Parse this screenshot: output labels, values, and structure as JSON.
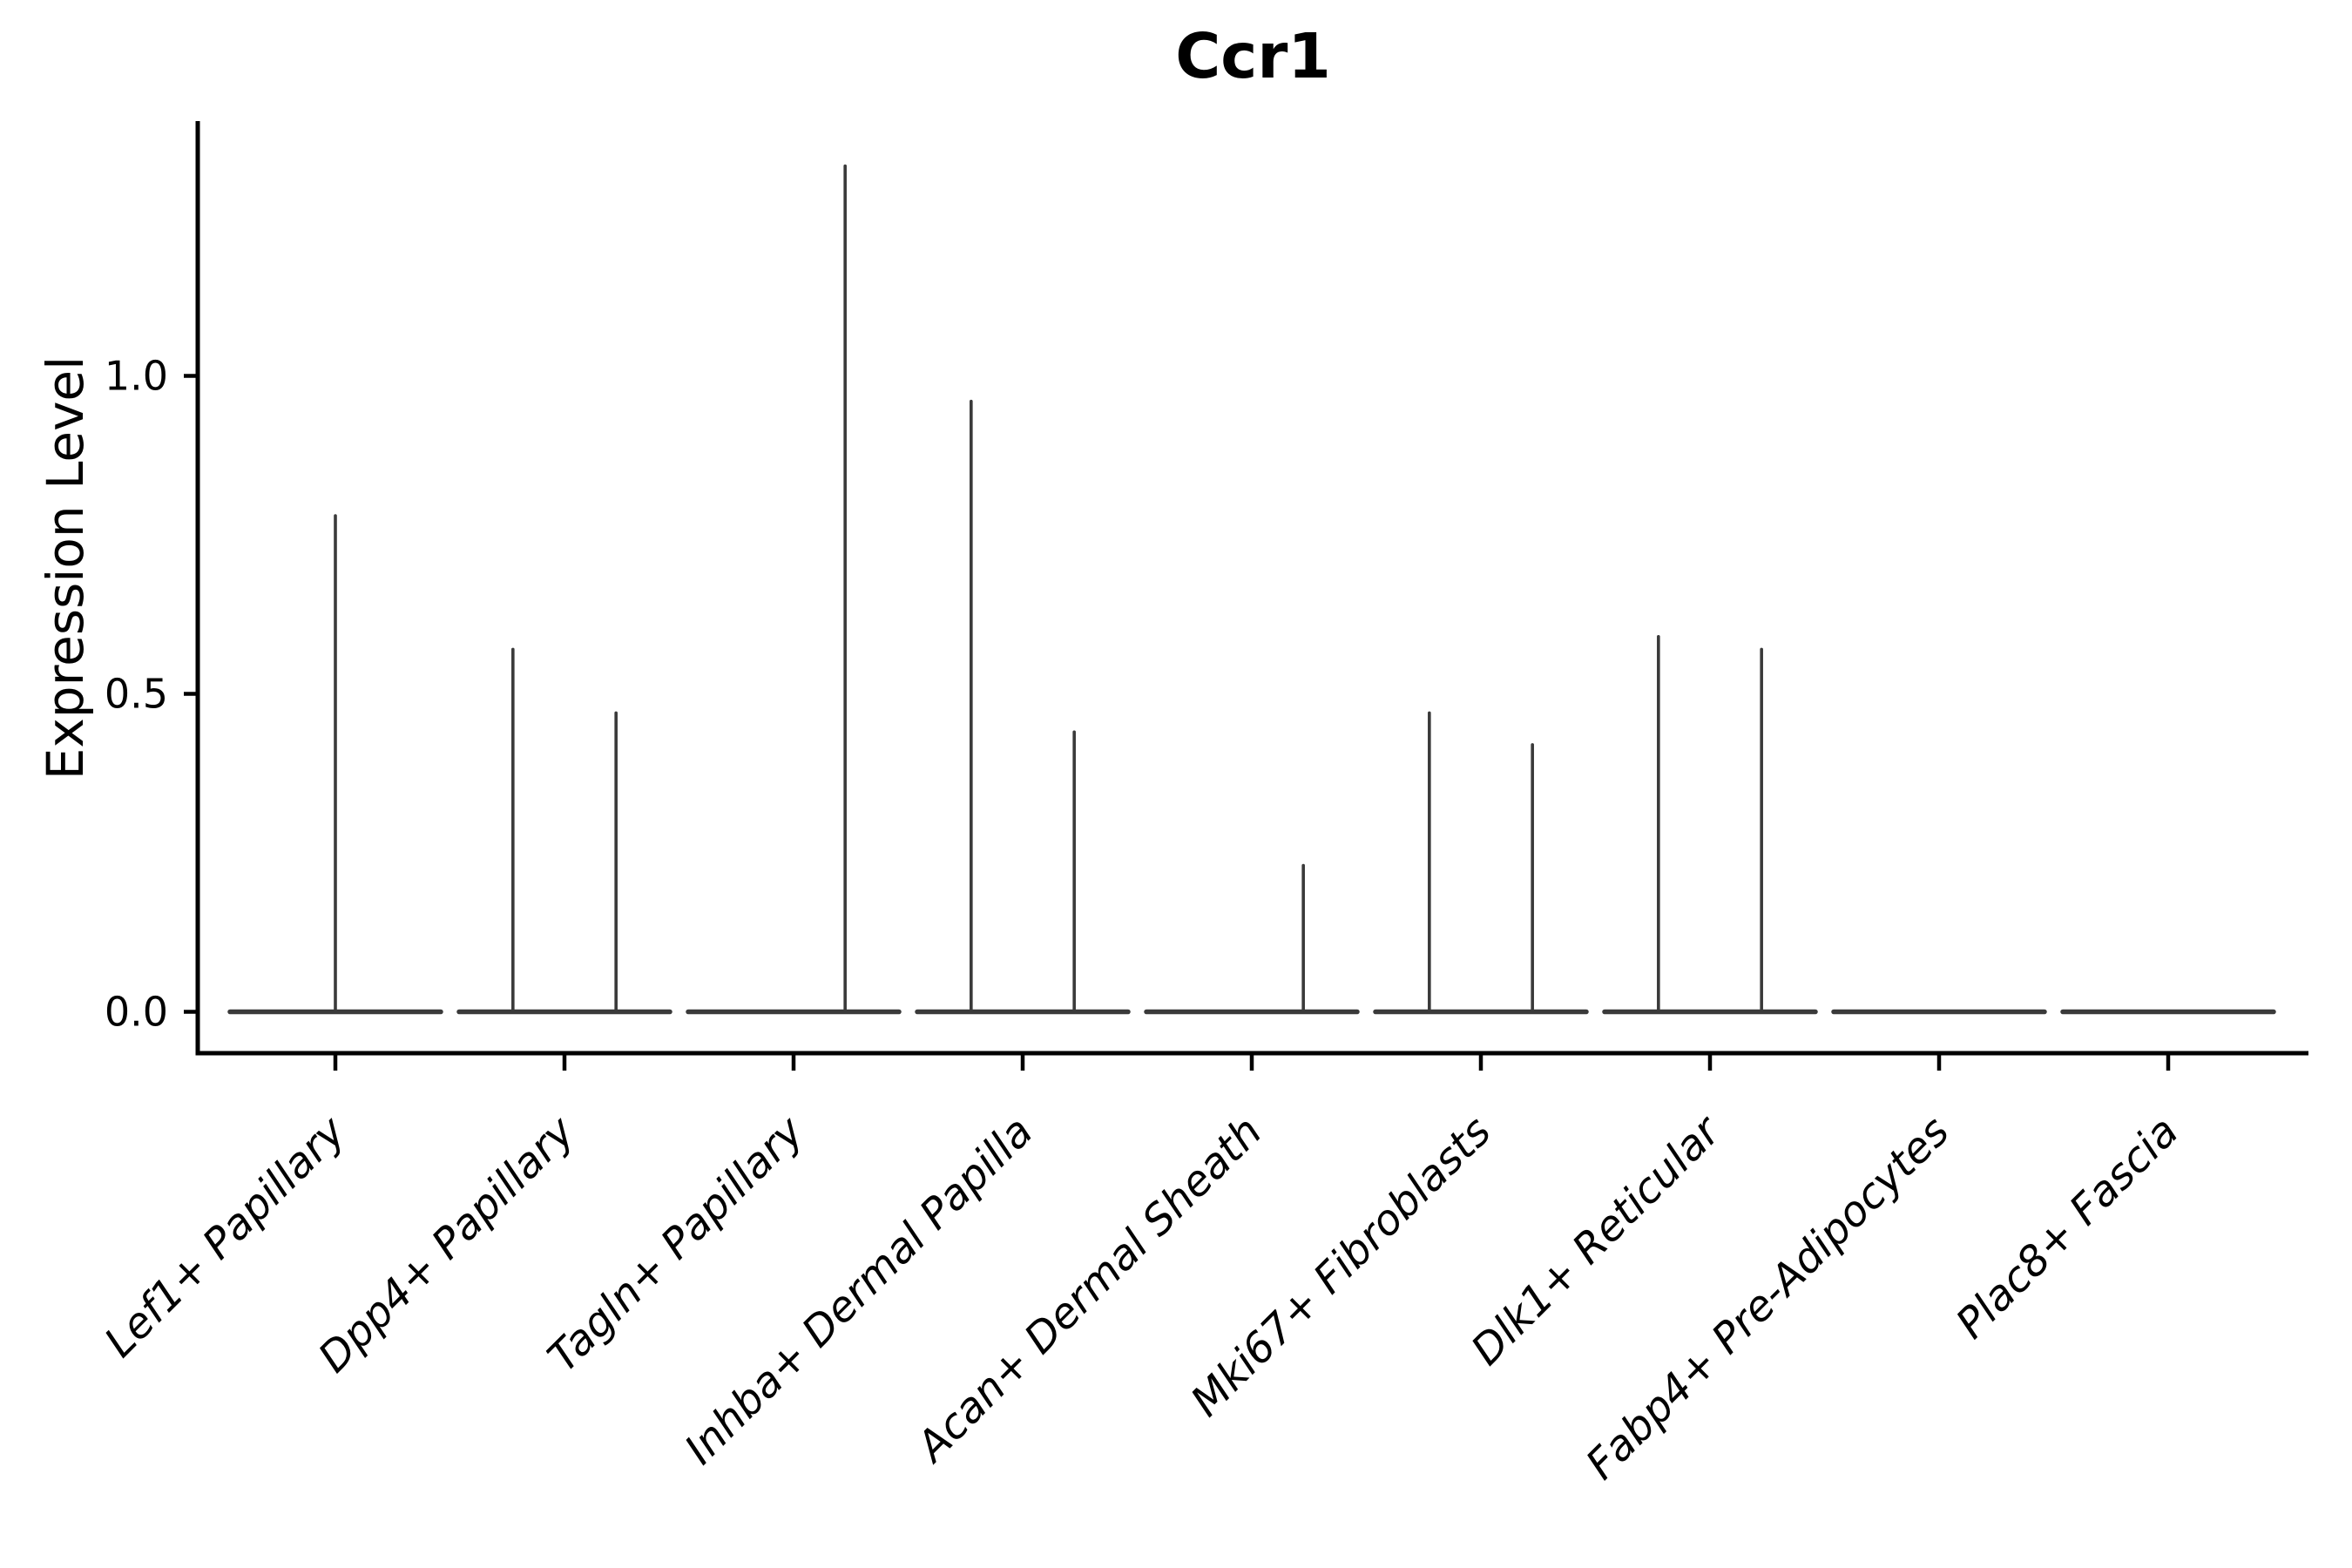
{
  "title": "Ccr1",
  "colors": {
    "background": "#ffffff",
    "axis": "#000000",
    "text": "#000000",
    "violin_stroke": "#3a3a3a"
  },
  "chart_data": {
    "type": "violin",
    "title": "Ccr1",
    "xlabel": "",
    "ylabel": "Expression Level",
    "ytick_labels": [
      "0.0",
      "0.5",
      "1.0"
    ],
    "ytick_values": [
      0.0,
      0.5,
      1.0
    ],
    "ylim": [
      -0.065,
      1.4
    ],
    "grid": false,
    "legend": "none",
    "x_label_rotation_deg": 45,
    "categories": [
      "Lef1+ Papillary",
      "Dpp4+ Papillary",
      "Tagln+ Papillary",
      "Inhba+ Dermal Papilla",
      "Acan+ Dermal Sheath",
      "Mki67+ Fibroblasts",
      "Dlk1+ Reticular",
      "Fabp4+ Pre-Adipocytes",
      "Plac8+ Fascia"
    ],
    "violins": [
      {
        "category": "Lef1+ Papillary",
        "baseline": 0.0,
        "spikes": [
          {
            "offset_frac": 0.0,
            "max": 0.78
          }
        ]
      },
      {
        "category": "Dpp4+ Papillary",
        "baseline": 0.0,
        "spikes": [
          {
            "offset_frac": -0.225,
            "max": 0.57
          },
          {
            "offset_frac": 0.225,
            "max": 0.47
          }
        ]
      },
      {
        "category": "Tagln+ Papillary",
        "baseline": 0.0,
        "spikes": [
          {
            "offset_frac": 0.225,
            "max": 1.33
          }
        ]
      },
      {
        "category": "Inhba+ Dermal Papilla",
        "baseline": 0.0,
        "spikes": [
          {
            "offset_frac": -0.225,
            "max": 0.96
          },
          {
            "offset_frac": 0.225,
            "max": 0.44
          }
        ]
      },
      {
        "category": "Acan+ Dermal Sheath",
        "baseline": 0.0,
        "spikes": [
          {
            "offset_frac": 0.225,
            "max": 0.23
          }
        ]
      },
      {
        "category": "Mki67+ Fibroblasts",
        "baseline": 0.0,
        "spikes": [
          {
            "offset_frac": -0.225,
            "max": 0.47
          },
          {
            "offset_frac": 0.225,
            "max": 0.42
          }
        ]
      },
      {
        "category": "Dlk1+ Reticular",
        "baseline": 0.0,
        "spikes": [
          {
            "offset_frac": -0.225,
            "max": 0.59
          },
          {
            "offset_frac": 0.225,
            "max": 0.57
          }
        ]
      },
      {
        "category": "Fabp4+ Pre-Adipocytes",
        "baseline": 0.0,
        "spikes": []
      },
      {
        "category": "Plac8+ Fascia",
        "baseline": 0.0,
        "spikes": []
      }
    ],
    "note": "Expression mostly zero in all clusters; violins collapse to flat baselines with thin density spikes"
  }
}
